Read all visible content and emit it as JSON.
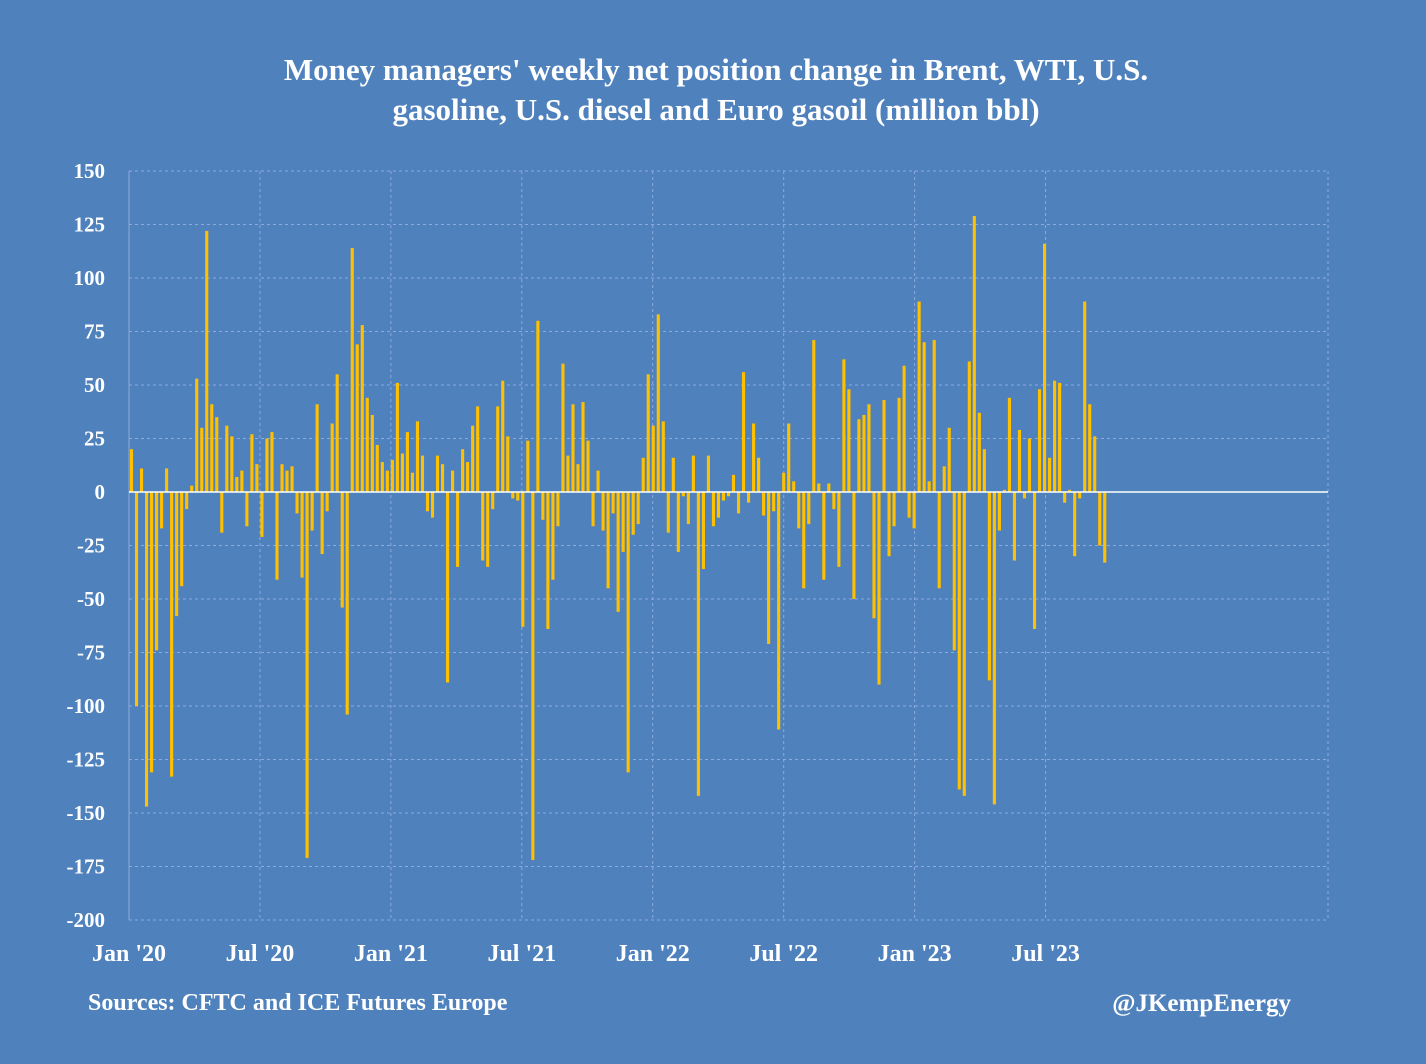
{
  "title_lines": [
    "Money managers' weekly net position change in Brent, WTI, U.S.",
    "gasoline, U.S. diesel and Euro gasoil (million bbl)"
  ],
  "footer": {
    "source": "Sources: CFTC and ICE Futures Europe",
    "handle": "@JKempEnergy"
  },
  "colors": {
    "background": "#4f81bd",
    "bar": "#ffc000",
    "grid": "#8eaadb",
    "text": "#ffffff"
  },
  "chart_data": {
    "type": "bar",
    "title": "Money managers' weekly net position change in Brent, WTI, U.S. gasoline, U.S. diesel and Euro gasoil (million bbl)",
    "xlabel": "",
    "ylabel": "",
    "ylim": [
      -200,
      150
    ],
    "yticks": [
      150,
      125,
      100,
      75,
      50,
      25,
      0,
      -25,
      -50,
      -75,
      -100,
      -125,
      -150,
      -175,
      -200
    ],
    "xtick_labels": [
      "Jan '20",
      "Jul '20",
      "Jan '21",
      "Jul '21",
      "Jan '22",
      "Jul '22",
      "Jan '23",
      "Jul '23"
    ],
    "weeks_total_axis": 239,
    "grid": true,
    "legend": "none",
    "values": [
      20,
      -100,
      11,
      -147,
      -131,
      -74,
      -17,
      11,
      -133,
      -58,
      -44,
      -8,
      3,
      53,
      30,
      122,
      41,
      35,
      -19,
      31,
      26,
      7,
      10,
      -16,
      27,
      13,
      -21,
      25,
      28,
      -41,
      13,
      10,
      12,
      -10,
      -40,
      -171,
      -18,
      41,
      -29,
      -9,
      32,
      55,
      -54,
      -104,
      114,
      69,
      78,
      44,
      36,
      22,
      14,
      10,
      15,
      51,
      18,
      28,
      9,
      33,
      17,
      -9,
      -12,
      17,
      13,
      -89,
      10,
      -35,
      20,
      14,
      31,
      40,
      -32,
      -35,
      -8,
      40,
      52,
      26,
      -3,
      -4,
      -63,
      24,
      -172,
      80,
      -13,
      -64,
      -41,
      -16,
      60,
      17,
      41,
      13,
      42,
      24,
      -16,
      10,
      -18,
      -45,
      -10,
      -56,
      -28,
      -131,
      -20,
      -15,
      16,
      55,
      31,
      83,
      33,
      -19,
      16,
      -28,
      -2,
      -15,
      17,
      -142,
      -36,
      17,
      -16,
      -12,
      -4,
      -2,
      8,
      -10,
      56,
      -5,
      32,
      16,
      -11,
      -71,
      -9,
      -111,
      9,
      32,
      5,
      -17,
      -45,
      -15,
      71,
      4,
      -41,
      4,
      -8,
      -35,
      62,
      48,
      -50,
      34,
      36,
      41,
      -59,
      -90,
      43,
      -30,
      -16,
      44,
      59,
      -12,
      -17,
      89,
      70,
      5,
      71,
      -45,
      12,
      30,
      -74,
      -139,
      -142,
      61,
      129,
      37,
      20,
      -88,
      -146,
      -18,
      1,
      44,
      -32,
      29,
      -3,
      25,
      -64,
      48,
      116,
      16,
      52,
      51,
      -5,
      1,
      -30,
      -3,
      89,
      41,
      26,
      -25,
      -33
    ]
  }
}
